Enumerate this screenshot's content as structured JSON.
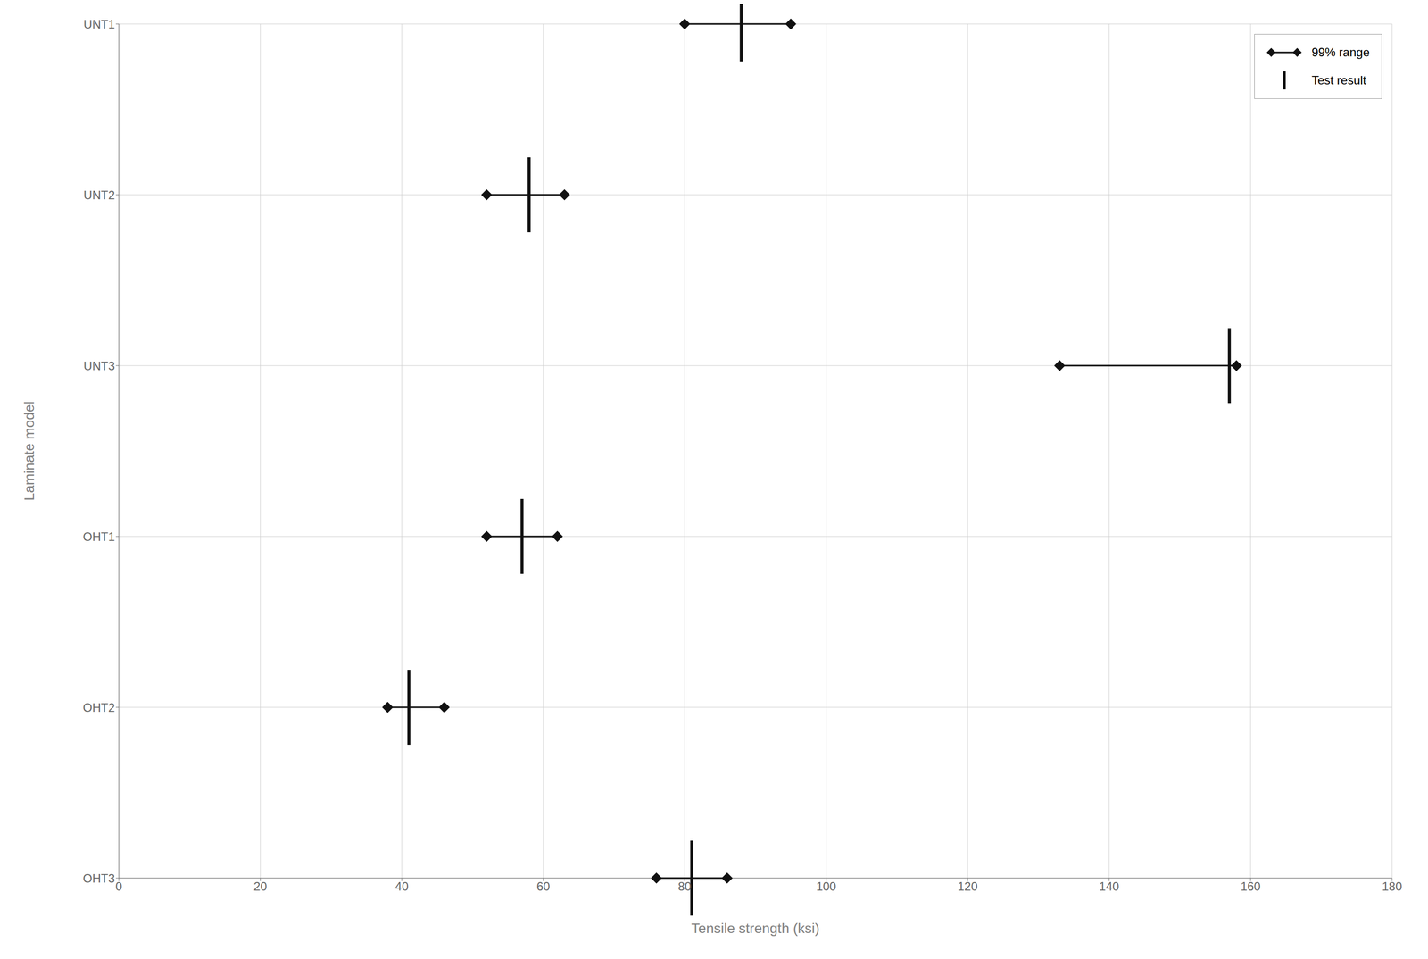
{
  "chart_data": {
    "type": "range",
    "xlabel": "Tensile strength (ksi)",
    "ylabel": "Laminate model",
    "categories": [
      "UNT1",
      "UNT2",
      "UNT3",
      "OHT1",
      "OHT2",
      "OHT3"
    ],
    "xlim": [
      0,
      180
    ],
    "xticks": [
      0,
      20,
      40,
      60,
      80,
      100,
      120,
      140,
      160,
      180
    ],
    "grid": true,
    "legend": "upper right",
    "series": [
      {
        "name": "99% range",
        "color": "#111111",
        "marker": "diamond",
        "values": [
          [
            80,
            95
          ],
          [
            52,
            63
          ],
          [
            133,
            158
          ],
          [
            52,
            62
          ],
          [
            38,
            46
          ],
          [
            76,
            86
          ]
        ]
      },
      {
        "name": "Test result",
        "color": "#111111",
        "marker": "vline",
        "values": [
          88,
          58,
          157,
          57,
          41,
          81
        ]
      }
    ]
  }
}
